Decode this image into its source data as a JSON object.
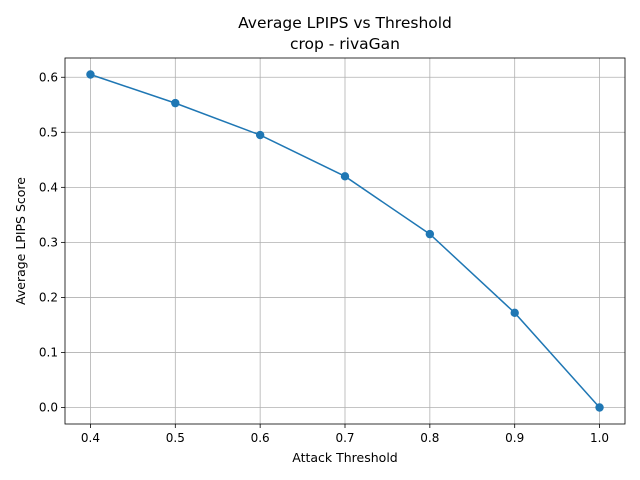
{
  "chart_data": {
    "type": "line",
    "title": "Average LPIPS vs Threshold",
    "subtitle": "crop - rivaGan",
    "xlabel": "Attack Threshold",
    "ylabel": "Average LPIPS Score",
    "x": [
      0.4,
      0.5,
      0.6,
      0.7,
      0.8,
      0.9,
      1.0
    ],
    "series": [
      {
        "values": [
          0.605,
          0.553,
          0.495,
          0.42,
          0.315,
          0.172,
          0.0
        ]
      }
    ],
    "xlim": [
      0.37,
      1.03
    ],
    "ylim": [
      -0.03,
      0.635
    ],
    "xticks": [
      "0.4",
      "0.5",
      "0.6",
      "0.7",
      "0.8",
      "0.9",
      "1.0"
    ],
    "yticks": [
      "0.0",
      "0.1",
      "0.2",
      "0.3",
      "0.4",
      "0.5",
      "0.6"
    ],
    "grid": true,
    "line_color": "#1f77b4"
  }
}
